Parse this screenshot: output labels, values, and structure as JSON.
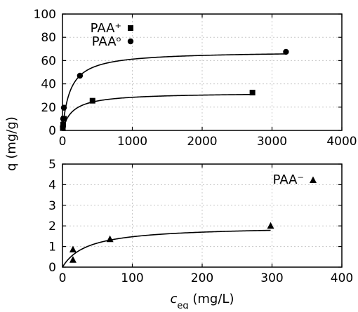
{
  "chart_data": [
    {
      "type": "scatter",
      "panel": "top",
      "ylabel": "q (mg/g)",
      "xlim": [
        0,
        4000
      ],
      "ylim": [
        0,
        100
      ],
      "xticks": [
        0,
        1000,
        2000,
        3000,
        4000
      ],
      "yticks": [
        0,
        20,
        40,
        60,
        80,
        100
      ],
      "grid": true,
      "legend_position": "top-left",
      "series": [
        {
          "name": "PAA⁺",
          "marker": "square",
          "points": [
            [
              5,
              2
            ],
            [
              10,
              5
            ],
            [
              20,
              10
            ],
            [
              430,
              25.5
            ],
            [
              2720,
              32.5
            ]
          ],
          "fit": {
            "model": "langmuir",
            "qmax": 32.5,
            "K": 0.007
          }
        },
        {
          "name": "PAAᵒ",
          "marker": "circle",
          "points": [
            [
              5,
              3
            ],
            [
              10,
              10
            ],
            [
              20,
              19.5
            ],
            [
              250,
              47
            ],
            [
              3200,
              67.5
            ]
          ],
          "fit": {
            "model": "langmuir",
            "qmax": 68,
            "K": 0.009
          }
        }
      ]
    },
    {
      "type": "scatter",
      "panel": "bottom",
      "xlabel": "c_eq (mg/L)",
      "xlim": [
        0,
        400
      ],
      "ylim": [
        0,
        5
      ],
      "xticks": [
        0,
        100,
        200,
        300,
        400
      ],
      "yticks": [
        0,
        1,
        2,
        3,
        4,
        5
      ],
      "grid": true,
      "legend_position": "top-right",
      "series": [
        {
          "name": "PAA⁻",
          "marker": "triangle",
          "points": [
            [
              15,
              0.35
            ],
            [
              15,
              0.85
            ],
            [
              68,
              1.35
            ],
            [
              298,
              2.0
            ]
          ],
          "fit": {
            "model": "langmuir",
            "qmax": 2.0,
            "K": 0.028,
            "x_end": 298
          }
        }
      ]
    }
  ],
  "labels": {
    "y_axis": "q (mg/g)",
    "x_axis_symbol": "c",
    "x_axis_subscript": "eq",
    "x_axis_unit": "(mg/L)"
  }
}
